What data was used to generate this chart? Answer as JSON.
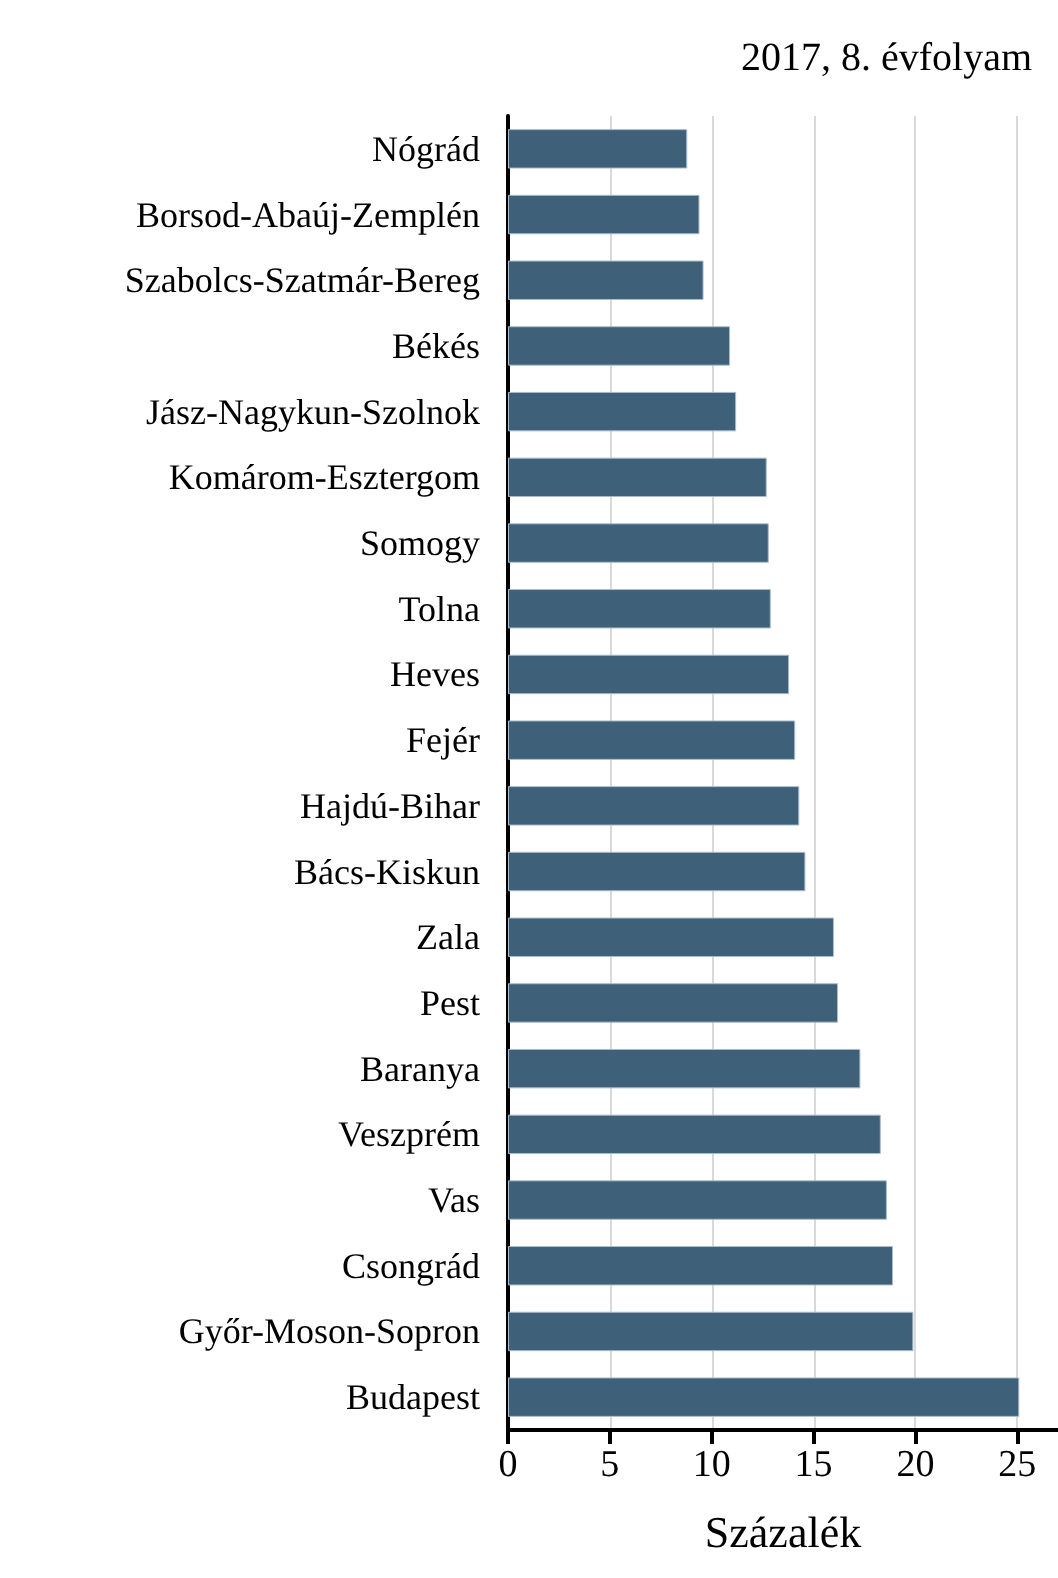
{
  "chart_data": {
    "type": "bar",
    "orientation": "horizontal",
    "title": "2017, 8. évfolyam",
    "xlabel": "Százalék",
    "categories": [
      "Nógrád",
      "Borsod-Abaúj-Zemplén",
      "Szabolcs-Szatmár-Bereg",
      "Békés",
      "Jász-Nagykun-Szolnok",
      "Komárom-Esztergom",
      "Somogy",
      "Tolna",
      "Heves",
      "Fejér",
      "Hajdú-Bihar",
      "Bács-Kiskun",
      "Zala",
      "Pest",
      "Baranya",
      "Veszprém",
      "Vas",
      "Csongrád",
      "Győr-Moson-Sopron",
      "Budapest"
    ],
    "values": [
      8.8,
      9.4,
      9.6,
      10.9,
      11.2,
      12.7,
      12.8,
      12.9,
      13.8,
      14.1,
      14.3,
      14.6,
      16.0,
      16.2,
      17.3,
      18.3,
      18.6,
      18.9,
      19.9,
      25.1
    ],
    "color": "#3e6079",
    "xlim": [
      0,
      27
    ],
    "xticks": [
      0,
      5,
      10,
      15,
      20,
      25
    ],
    "grid": "x"
  }
}
